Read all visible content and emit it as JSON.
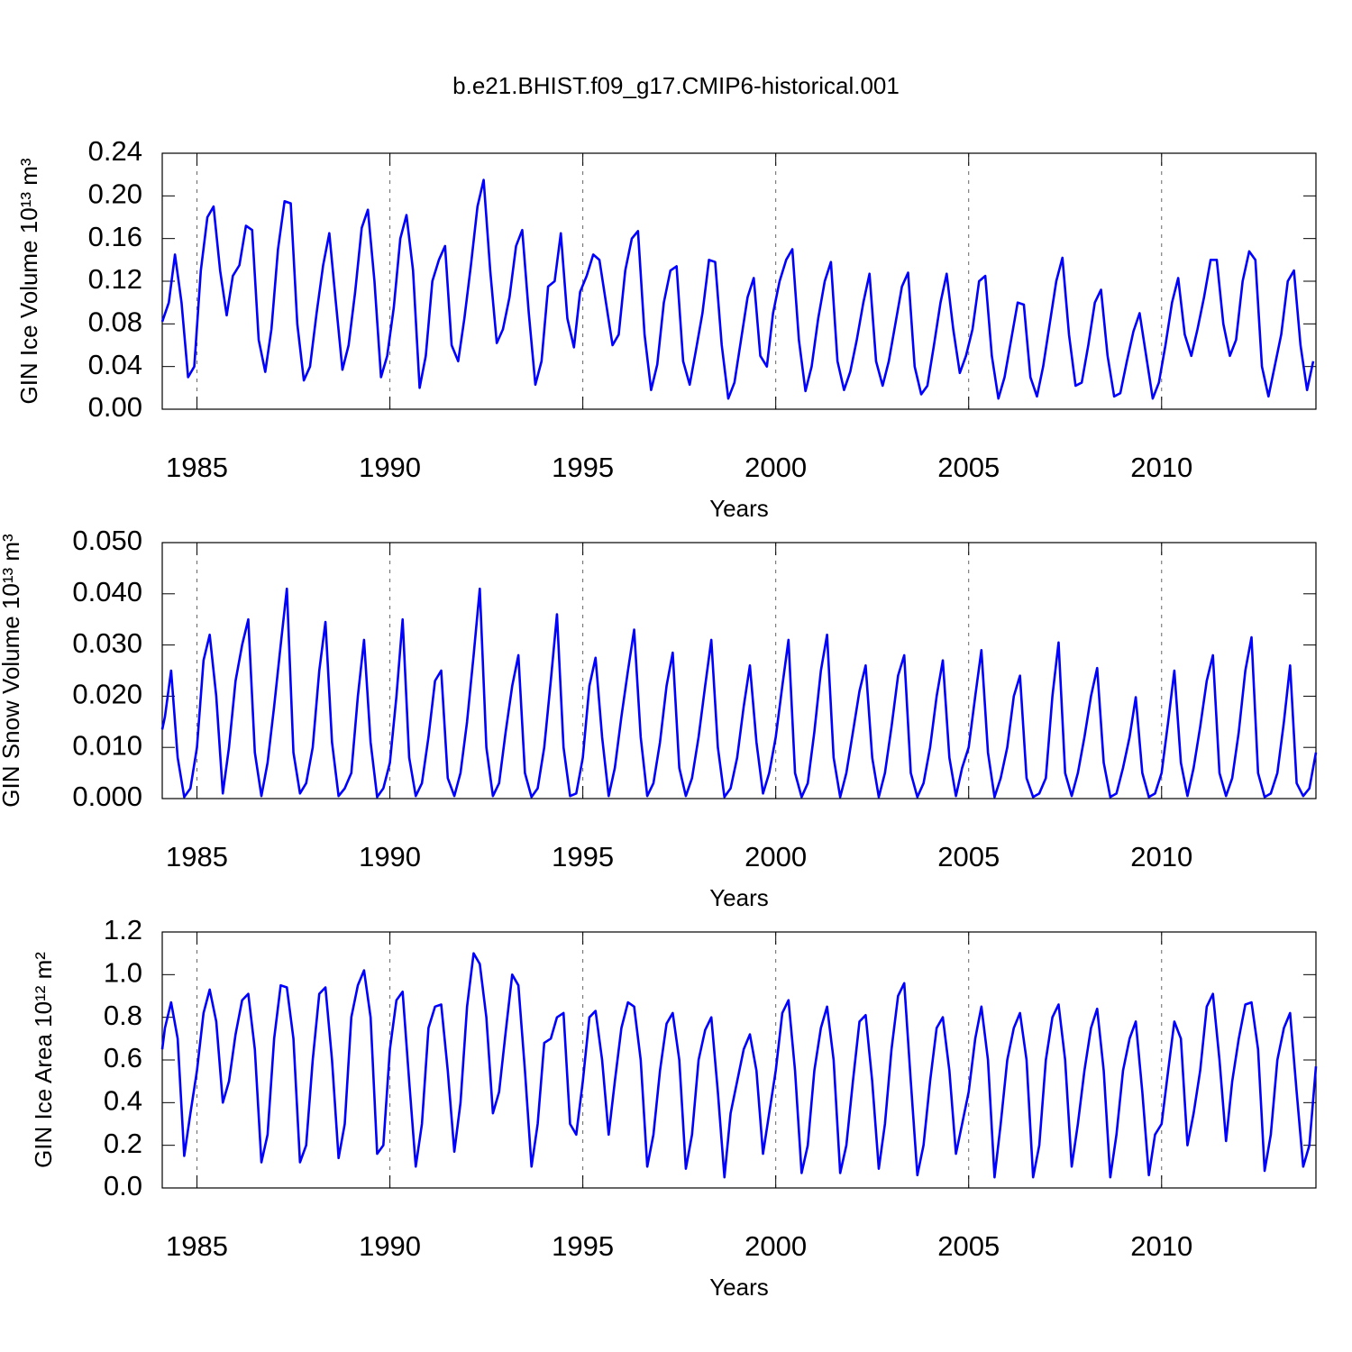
{
  "title": "b.e21.BHIST.f09_g17.CMIP6-historical.001",
  "chart_data": [
    {
      "type": "line",
      "xlabel": "Years",
      "ylabel": "GIN Ice Volume 10¹³ m³",
      "color": "#0000ff",
      "grid": true,
      "xlim": [
        1984.1,
        2014.0
      ],
      "xticks": [
        1985,
        1990,
        1995,
        2000,
        2005,
        2010
      ],
      "ylim": [
        0,
        0.24
      ],
      "yticks": [
        {
          "value": 0,
          "label": "0.00"
        },
        {
          "value": 0.04,
          "label": "0.04"
        },
        {
          "value": 0.08,
          "label": "0.08"
        },
        {
          "value": 0.12,
          "label": "0.12"
        },
        {
          "value": 0.16,
          "label": "0.16"
        },
        {
          "value": 0.2,
          "label": "0.20"
        },
        {
          "value": 0.24,
          "label": "0.24"
        }
      ],
      "x": [
        1984.1,
        1984.27,
        1984.43,
        1984.6,
        1984.77,
        1984.93,
        1985.1,
        1985.27,
        1985.43,
        1985.6,
        1985.77,
        1985.93,
        1986.1,
        1986.27,
        1986.43,
        1986.6,
        1986.77,
        1986.93,
        1987.1,
        1987.27,
        1987.43,
        1987.6,
        1987.77,
        1987.93,
        1988.1,
        1988.27,
        1988.43,
        1988.6,
        1988.77,
        1988.93,
        1989.1,
        1989.27,
        1989.43,
        1989.6,
        1989.77,
        1989.93,
        1990.1,
        1990.27,
        1990.43,
        1990.6,
        1990.77,
        1990.93,
        1991.1,
        1991.27,
        1991.43,
        1991.6,
        1991.77,
        1991.93,
        1992.1,
        1992.27,
        1992.43,
        1992.6,
        1992.77,
        1992.93,
        1993.1,
        1993.27,
        1993.43,
        1993.6,
        1993.77,
        1993.93,
        1994.1,
        1994.27,
        1994.43,
        1994.6,
        1994.77,
        1994.93,
        1995.1,
        1995.27,
        1995.43,
        1995.6,
        1995.77,
        1995.93,
        1996.1,
        1996.27,
        1996.43,
        1996.6,
        1996.77,
        1996.93,
        1997.1,
        1997.27,
        1997.43,
        1997.6,
        1997.77,
        1997.93,
        1998.1,
        1998.27,
        1998.43,
        1998.6,
        1998.77,
        1998.93,
        1999.1,
        1999.27,
        1999.43,
        1999.6,
        1999.77,
        1999.93,
        2000.1,
        2000.27,
        2000.43,
        2000.6,
        2000.77,
        2000.93,
        2001.1,
        2001.27,
        2001.43,
        2001.6,
        2001.77,
        2001.93,
        2002.1,
        2002.27,
        2002.43,
        2002.6,
        2002.77,
        2002.93,
        2003.1,
        2003.27,
        2003.43,
        2003.6,
        2003.77,
        2003.93,
        2004.1,
        2004.27,
        2004.43,
        2004.6,
        2004.77,
        2004.93,
        2005.1,
        2005.27,
        2005.43,
        2005.6,
        2005.77,
        2005.93,
        2006.1,
        2006.27,
        2006.43,
        2006.6,
        2006.77,
        2006.93,
        2007.1,
        2007.27,
        2007.43,
        2007.6,
        2007.77,
        2007.93,
        2008.1,
        2008.27,
        2008.43,
        2008.6,
        2008.77,
        2008.93,
        2009.1,
        2009.27,
        2009.43,
        2009.6,
        2009.77,
        2009.93,
        2010.1,
        2010.27,
        2010.43,
        2010.6,
        2010.77,
        2010.93,
        2011.1,
        2011.27,
        2011.43,
        2011.6,
        2011.77,
        2011.93,
        2012.1,
        2012.27,
        2012.43,
        2012.6,
        2012.77,
        2012.93,
        2013.1,
        2013.27,
        2013.43,
        2013.6,
        2013.77,
        2013.93
      ],
      "values": [
        0.082,
        0.1,
        0.145,
        0.1,
        0.03,
        0.04,
        0.13,
        0.18,
        0.19,
        0.13,
        0.088,
        0.125,
        0.135,
        0.172,
        0.168,
        0.065,
        0.035,
        0.075,
        0.15,
        0.195,
        0.193,
        0.08,
        0.027,
        0.04,
        0.09,
        0.135,
        0.165,
        0.1,
        0.037,
        0.06,
        0.11,
        0.17,
        0.187,
        0.12,
        0.03,
        0.05,
        0.095,
        0.16,
        0.182,
        0.13,
        0.02,
        0.05,
        0.12,
        0.14,
        0.153,
        0.06,
        0.045,
        0.085,
        0.135,
        0.19,
        0.215,
        0.13,
        0.062,
        0.075,
        0.105,
        0.153,
        0.168,
        0.09,
        0.023,
        0.045,
        0.115,
        0.12,
        0.165,
        0.085,
        0.058,
        0.11,
        0.125,
        0.145,
        0.14,
        0.1,
        0.06,
        0.07,
        0.13,
        0.16,
        0.167,
        0.07,
        0.018,
        0.042,
        0.1,
        0.13,
        0.134,
        0.045,
        0.023,
        0.055,
        0.09,
        0.14,
        0.138,
        0.06,
        0.01,
        0.025,
        0.065,
        0.105,
        0.123,
        0.05,
        0.04,
        0.09,
        0.12,
        0.14,
        0.15,
        0.065,
        0.017,
        0.04,
        0.085,
        0.12,
        0.138,
        0.045,
        0.018,
        0.035,
        0.065,
        0.1,
        0.127,
        0.045,
        0.022,
        0.045,
        0.08,
        0.115,
        0.128,
        0.04,
        0.014,
        0.022,
        0.06,
        0.1,
        0.127,
        0.075,
        0.034,
        0.05,
        0.075,
        0.12,
        0.125,
        0.05,
        0.01,
        0.03,
        0.065,
        0.1,
        0.098,
        0.03,
        0.012,
        0.04,
        0.08,
        0.12,
        0.142,
        0.07,
        0.022,
        0.025,
        0.06,
        0.1,
        0.112,
        0.05,
        0.012,
        0.015,
        0.045,
        0.073,
        0.09,
        0.05,
        0.01,
        0.025,
        0.06,
        0.1,
        0.123,
        0.07,
        0.05,
        0.075,
        0.105,
        0.14,
        0.14,
        0.08,
        0.05,
        0.065,
        0.12,
        0.148,
        0.14,
        0.04,
        0.012,
        0.04,
        0.07,
        0.12,
        0.13,
        0.06,
        0.018,
        0.045
      ]
    },
    {
      "type": "line",
      "xlabel": "Years",
      "ylabel": "GIN Snow Volume 10¹³ m³",
      "color": "#0000ff",
      "grid": true,
      "xlim": [
        1984.1,
        2014.0
      ],
      "xticks": [
        1985,
        1990,
        1995,
        2000,
        2005,
        2010
      ],
      "ylim": [
        0,
        0.05
      ],
      "yticks": [
        {
          "value": 0,
          "label": "0.000"
        },
        {
          "value": 0.01,
          "label": "0.010"
        },
        {
          "value": 0.02,
          "label": "0.020"
        },
        {
          "value": 0.03,
          "label": "0.030"
        },
        {
          "value": 0.04,
          "label": "0.040"
        },
        {
          "value": 0.05,
          "label": "0.050"
        }
      ],
      "x": [
        1984.1,
        1984.17,
        1984.33,
        1984.5,
        1984.67,
        1984.83,
        1985,
        1985.17,
        1985.33,
        1985.5,
        1985.67,
        1985.83,
        1986,
        1986.17,
        1986.33,
        1986.5,
        1986.67,
        1986.83,
        1987,
        1987.17,
        1987.33,
        1987.5,
        1987.67,
        1987.83,
        1988,
        1988.17,
        1988.33,
        1988.5,
        1988.67,
        1988.83,
        1989,
        1989.17,
        1989.33,
        1989.5,
        1989.67,
        1989.83,
        1990,
        1990.17,
        1990.33,
        1990.5,
        1990.67,
        1990.83,
        1991,
        1991.17,
        1991.33,
        1991.5,
        1991.67,
        1991.83,
        1992,
        1992.17,
        1992.33,
        1992.5,
        1992.67,
        1992.83,
        1993,
        1993.17,
        1993.33,
        1993.5,
        1993.67,
        1993.83,
        1994,
        1994.17,
        1994.33,
        1994.5,
        1994.67,
        1994.83,
        1995,
        1995.17,
        1995.33,
        1995.5,
        1995.67,
        1995.83,
        1996,
        1996.17,
        1996.33,
        1996.5,
        1996.67,
        1996.83,
        1997,
        1997.17,
        1997.33,
        1997.5,
        1997.67,
        1997.83,
        1998,
        1998.17,
        1998.33,
        1998.5,
        1998.67,
        1998.83,
        1999,
        1999.17,
        1999.33,
        1999.5,
        1999.67,
        1999.83,
        2000,
        2000.17,
        2000.33,
        2000.5,
        2000.67,
        2000.83,
        2001,
        2001.17,
        2001.33,
        2001.5,
        2001.67,
        2001.83,
        2002,
        2002.17,
        2002.33,
        2002.5,
        2002.67,
        2002.83,
        2003,
        2003.17,
        2003.33,
        2003.5,
        2003.67,
        2003.83,
        2004,
        2004.17,
        2004.33,
        2004.5,
        2004.67,
        2004.83,
        2005,
        2005.17,
        2005.33,
        2005.5,
        2005.67,
        2005.83,
        2006,
        2006.17,
        2006.33,
        2006.5,
        2006.67,
        2006.83,
        2007,
        2007.17,
        2007.33,
        2007.5,
        2007.67,
        2007.83,
        2008,
        2008.17,
        2008.33,
        2008.5,
        2008.67,
        2008.83,
        2009,
        2009.17,
        2009.33,
        2009.5,
        2009.67,
        2009.83,
        2010,
        2010.17,
        2010.33,
        2010.5,
        2010.67,
        2010.83,
        2011,
        2011.17,
        2011.33,
        2011.5,
        2011.67,
        2011.83,
        2012,
        2012.17,
        2012.33,
        2012.5,
        2012.67,
        2012.83,
        2013,
        2013.17,
        2013.33,
        2013.5,
        2013.67,
        2013.83,
        2014
      ],
      "values": [
        0.0135,
        0.016,
        0.025,
        0.008,
        0.0003,
        0.002,
        0.01,
        0.027,
        0.032,
        0.02,
        0.001,
        0.01,
        0.023,
        0.03,
        0.035,
        0.009,
        0.0005,
        0.007,
        0.018,
        0.03,
        0.041,
        0.009,
        0.001,
        0.003,
        0.01,
        0.025,
        0.0345,
        0.011,
        0.0005,
        0.002,
        0.005,
        0.02,
        0.031,
        0.011,
        0.0003,
        0.002,
        0.007,
        0.02,
        0.035,
        0.008,
        0.0005,
        0.003,
        0.012,
        0.023,
        0.025,
        0.004,
        0.0005,
        0.005,
        0.015,
        0.028,
        0.041,
        0.01,
        0.0005,
        0.003,
        0.013,
        0.022,
        0.028,
        0.005,
        0.0003,
        0.002,
        0.01,
        0.023,
        0.036,
        0.01,
        0.0005,
        0.001,
        0.008,
        0.022,
        0.0275,
        0.012,
        0.0005,
        0.006,
        0.016,
        0.025,
        0.033,
        0.012,
        0.0005,
        0.003,
        0.011,
        0.022,
        0.0285,
        0.006,
        0.0005,
        0.004,
        0.012,
        0.022,
        0.031,
        0.01,
        0.0003,
        0.002,
        0.008,
        0.018,
        0.026,
        0.011,
        0.001,
        0.005,
        0.012,
        0.022,
        0.031,
        0.005,
        0.0003,
        0.003,
        0.013,
        0.025,
        0.032,
        0.008,
        0.0003,
        0.005,
        0.013,
        0.021,
        0.026,
        0.008,
        0.0003,
        0.005,
        0.014,
        0.024,
        0.028,
        0.005,
        0.0003,
        0.003,
        0.01,
        0.02,
        0.027,
        0.008,
        0.0005,
        0.006,
        0.01,
        0.02,
        0.029,
        0.009,
        0.0003,
        0.004,
        0.01,
        0.02,
        0.024,
        0.004,
        0.0003,
        0.001,
        0.004,
        0.02,
        0.0305,
        0.005,
        0.0005,
        0.005,
        0.012,
        0.02,
        0.0255,
        0.007,
        0.0003,
        0.001,
        0.006,
        0.012,
        0.0198,
        0.005,
        0.0003,
        0.001,
        0.005,
        0.015,
        0.025,
        0.007,
        0.0005,
        0.006,
        0.014,
        0.023,
        0.028,
        0.005,
        0.0005,
        0.004,
        0.013,
        0.025,
        0.0315,
        0.005,
        0.0003,
        0.001,
        0.005,
        0.015,
        0.026,
        0.003,
        0.0005,
        0.002,
        0.009
      ]
    },
    {
      "type": "line",
      "xlabel": "Years",
      "ylabel": "GIN Ice Area 10¹² m²",
      "color": "#0000ff",
      "grid": true,
      "xlim": [
        1984.1,
        2014.0
      ],
      "xticks": [
        1985,
        1990,
        1995,
        2000,
        2005,
        2010
      ],
      "ylim": [
        0,
        1.2
      ],
      "yticks": [
        {
          "value": 0,
          "label": "0.0"
        },
        0.2,
        0.4,
        0.6,
        0.8,
        {
          "value": 1,
          "label": "1.0"
        },
        1.2
      ],
      "x": [
        1984.1,
        1984.17,
        1984.33,
        1984.5,
        1984.67,
        1984.83,
        1985,
        1985.17,
        1985.33,
        1985.5,
        1985.67,
        1985.83,
        1986,
        1986.17,
        1986.33,
        1986.5,
        1986.67,
        1986.83,
        1987,
        1987.17,
        1987.33,
        1987.5,
        1987.67,
        1987.83,
        1988,
        1988.17,
        1988.33,
        1988.5,
        1988.67,
        1988.83,
        1989,
        1989.17,
        1989.33,
        1989.5,
        1989.67,
        1989.83,
        1990,
        1990.17,
        1990.33,
        1990.5,
        1990.67,
        1990.83,
        1991,
        1991.17,
        1991.33,
        1991.5,
        1991.67,
        1991.83,
        1992,
        1992.17,
        1992.33,
        1992.5,
        1992.67,
        1992.83,
        1993,
        1993.17,
        1993.33,
        1993.5,
        1993.67,
        1993.83,
        1994,
        1994.17,
        1994.33,
        1994.5,
        1994.67,
        1994.83,
        1995,
        1995.17,
        1995.33,
        1995.5,
        1995.67,
        1995.83,
        1996,
        1996.17,
        1996.33,
        1996.5,
        1996.67,
        1996.83,
        1997,
        1997.17,
        1997.33,
        1997.5,
        1997.67,
        1997.83,
        1998,
        1998.17,
        1998.33,
        1998.5,
        1998.67,
        1998.83,
        1999,
        1999.17,
        1999.33,
        1999.5,
        1999.67,
        1999.83,
        2000,
        2000.17,
        2000.33,
        2000.5,
        2000.67,
        2000.83,
        2001,
        2001.17,
        2001.33,
        2001.5,
        2001.67,
        2001.83,
        2002,
        2002.17,
        2002.33,
        2002.5,
        2002.67,
        2002.83,
        2003,
        2003.17,
        2003.33,
        2003.5,
        2003.67,
        2003.83,
        2004,
        2004.17,
        2004.33,
        2004.5,
        2004.67,
        2004.83,
        2005,
        2005.17,
        2005.33,
        2005.5,
        2005.67,
        2005.83,
        2006,
        2006.17,
        2006.33,
        2006.5,
        2006.67,
        2006.83,
        2007,
        2007.17,
        2007.33,
        2007.5,
        2007.67,
        2007.83,
        2008,
        2008.17,
        2008.33,
        2008.5,
        2008.67,
        2008.83,
        2009,
        2009.17,
        2009.33,
        2009.5,
        2009.67,
        2009.83,
        2010,
        2010.17,
        2010.33,
        2010.5,
        2010.67,
        2010.83,
        2011,
        2011.17,
        2011.33,
        2011.5,
        2011.67,
        2011.83,
        2012,
        2012.17,
        2012.33,
        2012.5,
        2012.67,
        2012.83,
        2013,
        2013.17,
        2013.33,
        2013.5,
        2013.67,
        2013.83,
        2014
      ],
      "values": [
        0.65,
        0.75,
        0.87,
        0.7,
        0.15,
        0.35,
        0.55,
        0.82,
        0.93,
        0.78,
        0.4,
        0.5,
        0.72,
        0.88,
        0.91,
        0.65,
        0.12,
        0.25,
        0.7,
        0.95,
        0.94,
        0.7,
        0.12,
        0.2,
        0.6,
        0.91,
        0.94,
        0.6,
        0.14,
        0.3,
        0.8,
        0.95,
        1.02,
        0.8,
        0.16,
        0.2,
        0.65,
        0.88,
        0.92,
        0.5,
        0.1,
        0.3,
        0.75,
        0.85,
        0.86,
        0.55,
        0.17,
        0.4,
        0.85,
        1.1,
        1.05,
        0.8,
        0.35,
        0.45,
        0.73,
        1.0,
        0.95,
        0.55,
        0.1,
        0.3,
        0.68,
        0.7,
        0.8,
        0.82,
        0.3,
        0.25,
        0.5,
        0.8,
        0.83,
        0.6,
        0.25,
        0.5,
        0.75,
        0.87,
        0.85,
        0.6,
        0.1,
        0.25,
        0.55,
        0.77,
        0.82,
        0.6,
        0.09,
        0.25,
        0.6,
        0.74,
        0.8,
        0.45,
        0.05,
        0.35,
        0.5,
        0.65,
        0.72,
        0.55,
        0.16,
        0.35,
        0.55,
        0.82,
        0.88,
        0.55,
        0.07,
        0.2,
        0.55,
        0.75,
        0.85,
        0.6,
        0.07,
        0.2,
        0.5,
        0.78,
        0.81,
        0.5,
        0.09,
        0.3,
        0.65,
        0.9,
        0.96,
        0.5,
        0.06,
        0.2,
        0.5,
        0.75,
        0.8,
        0.55,
        0.16,
        0.3,
        0.45,
        0.7,
        0.85,
        0.6,
        0.05,
        0.3,
        0.6,
        0.75,
        0.82,
        0.6,
        0.05,
        0.2,
        0.6,
        0.8,
        0.86,
        0.6,
        0.1,
        0.3,
        0.55,
        0.75,
        0.84,
        0.55,
        0.05,
        0.25,
        0.55,
        0.7,
        0.78,
        0.45,
        0.06,
        0.25,
        0.3,
        0.55,
        0.78,
        0.7,
        0.2,
        0.35,
        0.55,
        0.85,
        0.91,
        0.6,
        0.22,
        0.5,
        0.7,
        0.86,
        0.87,
        0.65,
        0.08,
        0.25,
        0.6,
        0.75,
        0.82,
        0.45,
        0.1,
        0.2,
        0.57
      ]
    }
  ]
}
